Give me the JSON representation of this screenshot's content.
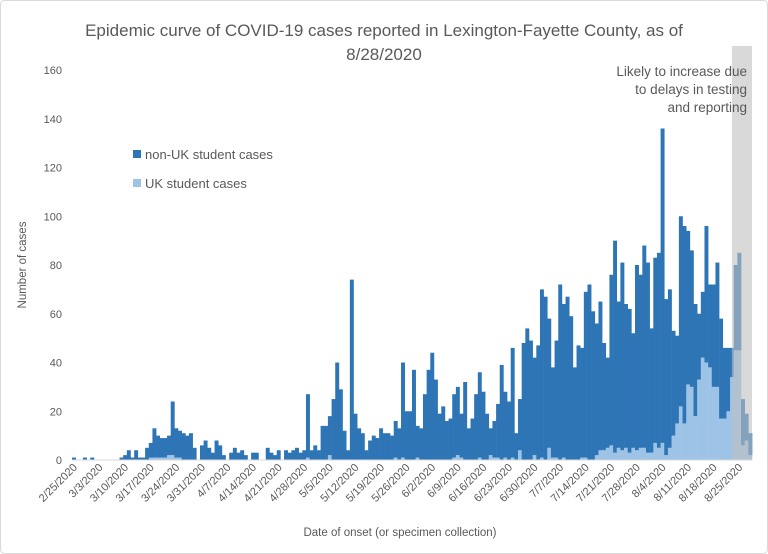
{
  "chart_data": {
    "type": "bar",
    "stacked": true,
    "title": "Epidemic curve of COVID-19 cases reported in Lexington-Fayette County, as of 8/28/2020",
    "title_lines": [
      "Epidemic curve of COVID-19 cases reported in Lexington-Fayette County, as of",
      "8/28/2020"
    ],
    "xlabel": "Date of onset (or specimen collection)",
    "ylabel": "Number of cases",
    "ylim": [
      0,
      160
    ],
    "yticks": [
      0,
      20,
      40,
      60,
      80,
      100,
      120,
      140,
      160
    ],
    "xtick_labels": [
      "2/25/2020",
      "3/3/2020",
      "3/10/2020",
      "3/17/2020",
      "3/24/2020",
      "3/31/2020",
      "4/7/2020",
      "4/14/2020",
      "4/21/2020",
      "4/28/2020",
      "5/5/2020",
      "5/12/2020",
      "5/19/2020",
      "5/26/2020",
      "6/2/2020",
      "6/9/2020",
      "6/16/2020",
      "6/23/2020",
      "6/30/2020",
      "7/7/2020",
      "7/14/2020",
      "7/21/2020",
      "7/28/2020",
      "8/4/2020",
      "8/11/2020",
      "8/18/2020",
      "8/25/2020"
    ],
    "grid": false,
    "legend_placement": "upper-left",
    "annotation": {
      "lines": [
        "Likely to increase due",
        "to delays in testing",
        "and reporting"
      ],
      "shaded_from": "8/23/2020",
      "shaded_to": "8/28/2020"
    },
    "x": [
      "2/25/2020",
      "2/26/2020",
      "2/27/2020",
      "2/28/2020",
      "2/29/2020",
      "3/1/2020",
      "3/2/2020",
      "3/3/2020",
      "3/4/2020",
      "3/5/2020",
      "3/6/2020",
      "3/7/2020",
      "3/8/2020",
      "3/9/2020",
      "3/10/2020",
      "3/11/2020",
      "3/12/2020",
      "3/13/2020",
      "3/14/2020",
      "3/15/2020",
      "3/16/2020",
      "3/17/2020",
      "3/18/2020",
      "3/19/2020",
      "3/20/2020",
      "3/21/2020",
      "3/22/2020",
      "3/23/2020",
      "3/24/2020",
      "3/25/2020",
      "3/26/2020",
      "3/27/2020",
      "3/28/2020",
      "3/29/2020",
      "3/30/2020",
      "3/31/2020",
      "4/1/2020",
      "4/2/2020",
      "4/3/2020",
      "4/4/2020",
      "4/5/2020",
      "4/6/2020",
      "4/7/2020",
      "4/8/2020",
      "4/9/2020",
      "4/10/2020",
      "4/11/2020",
      "4/12/2020",
      "4/13/2020",
      "4/14/2020",
      "4/15/2020",
      "4/16/2020",
      "4/17/2020",
      "4/18/2020",
      "4/19/2020",
      "4/20/2020",
      "4/21/2020",
      "4/22/2020",
      "4/23/2020",
      "4/24/2020",
      "4/25/2020",
      "4/26/2020",
      "4/27/2020",
      "4/28/2020",
      "4/29/2020",
      "4/30/2020",
      "5/1/2020",
      "5/2/2020",
      "5/3/2020",
      "5/4/2020",
      "5/5/2020",
      "5/6/2020",
      "5/7/2020",
      "5/8/2020",
      "5/9/2020",
      "5/10/2020",
      "5/11/2020",
      "5/12/2020",
      "5/13/2020",
      "5/14/2020",
      "5/15/2020",
      "5/16/2020",
      "5/17/2020",
      "5/18/2020",
      "5/19/2020",
      "5/20/2020",
      "5/21/2020",
      "5/22/2020",
      "5/23/2020",
      "5/24/2020",
      "5/25/2020",
      "5/26/2020",
      "5/27/2020",
      "5/28/2020",
      "5/29/2020",
      "5/30/2020",
      "5/31/2020",
      "6/1/2020",
      "6/2/2020",
      "6/3/2020",
      "6/4/2020",
      "6/5/2020",
      "6/6/2020",
      "6/7/2020",
      "6/8/2020",
      "6/9/2020",
      "6/10/2020",
      "6/11/2020",
      "6/12/2020",
      "6/13/2020",
      "6/14/2020",
      "6/15/2020",
      "6/16/2020",
      "6/17/2020",
      "6/18/2020",
      "6/19/2020",
      "6/20/2020",
      "6/21/2020",
      "6/22/2020",
      "6/23/2020",
      "6/24/2020",
      "6/25/2020",
      "6/26/2020",
      "6/27/2020",
      "6/28/2020",
      "6/29/2020",
      "6/30/2020",
      "7/1/2020",
      "7/2/2020",
      "7/3/2020",
      "7/4/2020",
      "7/5/2020",
      "7/6/2020",
      "7/7/2020",
      "7/8/2020",
      "7/9/2020",
      "7/10/2020",
      "7/11/2020",
      "7/12/2020",
      "7/13/2020",
      "7/14/2020",
      "7/15/2020",
      "7/16/2020",
      "7/17/2020",
      "7/18/2020",
      "7/19/2020",
      "7/20/2020",
      "7/21/2020",
      "7/22/2020",
      "7/23/2020",
      "7/24/2020",
      "7/25/2020",
      "7/26/2020",
      "7/27/2020",
      "7/28/2020",
      "7/29/2020",
      "7/30/2020",
      "7/31/2020",
      "8/1/2020",
      "8/2/2020",
      "8/3/2020",
      "8/4/2020",
      "8/5/2020",
      "8/6/2020",
      "8/7/2020",
      "8/8/2020",
      "8/9/2020",
      "8/10/2020",
      "8/11/2020",
      "8/12/2020",
      "8/13/2020",
      "8/14/2020",
      "8/15/2020",
      "8/16/2020",
      "8/17/2020",
      "8/18/2020",
      "8/19/2020",
      "8/20/2020",
      "8/21/2020",
      "8/22/2020",
      "8/23/2020",
      "8/24/2020",
      "8/25/2020",
      "8/26/2020",
      "8/27/2020",
      "8/28/2020"
    ],
    "series": [
      {
        "name": "UK student cases",
        "color": "#9dc3e6",
        "values": [
          0,
          0,
          0,
          0,
          0,
          0,
          0,
          0,
          0,
          0,
          0,
          0,
          0,
          0,
          0,
          0,
          0,
          0,
          0,
          0,
          0,
          1,
          1,
          1,
          1,
          1,
          2,
          2,
          1,
          1,
          0,
          0,
          0,
          0,
          0,
          0,
          0,
          0,
          0,
          0,
          0,
          0,
          0,
          0,
          0,
          0,
          0,
          0,
          0,
          0,
          0,
          0,
          0,
          0,
          0,
          0,
          0,
          0,
          0,
          0,
          0,
          0,
          0,
          0,
          1,
          0,
          0,
          0,
          0,
          0,
          2,
          0,
          0,
          0,
          0,
          0,
          0,
          0,
          0,
          0,
          0,
          0,
          0,
          0,
          0,
          0,
          0,
          0,
          1,
          0,
          1,
          0,
          0,
          0,
          1,
          0,
          0,
          0,
          0,
          0,
          0,
          0,
          0,
          0,
          1,
          2,
          1,
          0,
          0,
          0,
          0,
          1,
          0,
          0,
          2,
          1,
          1,
          0,
          1,
          0,
          1,
          0,
          4,
          0,
          0,
          0,
          2,
          0,
          1,
          0,
          5,
          1,
          1,
          0,
          1,
          0,
          0,
          0,
          0,
          1,
          1,
          0,
          0,
          2,
          4,
          4,
          5,
          6,
          3,
          5,
          4,
          5,
          3,
          5,
          4,
          5,
          5,
          3,
          3,
          7,
          5,
          7,
          2,
          5,
          10,
          15,
          22,
          15,
          31,
          30,
          18,
          33,
          42,
          40,
          38,
          30,
          30,
          17,
          17,
          20,
          34,
          45,
          45,
          6,
          8,
          2
        ]
      },
      {
        "name": "non-UK student cases",
        "color": "#2e75b6",
        "values": [
          1,
          0,
          0,
          1,
          0,
          1,
          0,
          0,
          0,
          0,
          0,
          0,
          0,
          1,
          2,
          4,
          1,
          4,
          1,
          1,
          5,
          6,
          12,
          9,
          8,
          8,
          8,
          22,
          12,
          11,
          11,
          10,
          11,
          5,
          0,
          6,
          8,
          5,
          3,
          8,
          6,
          2,
          0,
          3,
          5,
          3,
          4,
          2,
          0,
          3,
          3,
          0,
          0,
          5,
          3,
          2,
          4,
          0,
          4,
          3,
          4,
          5,
          3,
          4,
          26,
          4,
          6,
          4,
          14,
          14,
          16,
          25,
          40,
          29,
          12,
          4,
          74,
          19,
          13,
          11,
          4,
          8,
          10,
          9,
          13,
          11,
          11,
          10,
          15,
          13,
          39,
          20,
          20,
          37,
          13,
          13,
          27,
          37,
          44,
          33,
          19,
          22,
          16,
          17,
          26,
          28,
          18,
          32,
          13,
          17,
          27,
          35,
          28,
          19,
          11,
          15,
          22,
          39,
          27,
          24,
          45,
          11,
          21,
          48,
          54,
          49,
          40,
          47,
          69,
          67,
          53,
          37,
          48,
          72,
          63,
          67,
          59,
          38,
          47,
          45,
          68,
          72,
          61,
          54,
          61,
          44,
          37,
          70,
          87,
          60,
          77,
          59,
          59,
          47,
          76,
          71,
          83,
          78,
          51,
          76,
          80,
          129,
          64,
          65,
          43,
          36,
          78,
          81,
          63,
          56,
          46,
          27,
          27,
          56,
          34,
          42,
          51,
          41,
          29,
          26,
          12,
          35,
          40,
          19,
          11,
          9
        ]
      }
    ],
    "legend": [
      {
        "label": "non-UK student cases",
        "color": "#2e75b6"
      },
      {
        "label": "UK student cases",
        "color": "#9dc3e6"
      }
    ],
    "shade_color": "#bfbfbf"
  }
}
